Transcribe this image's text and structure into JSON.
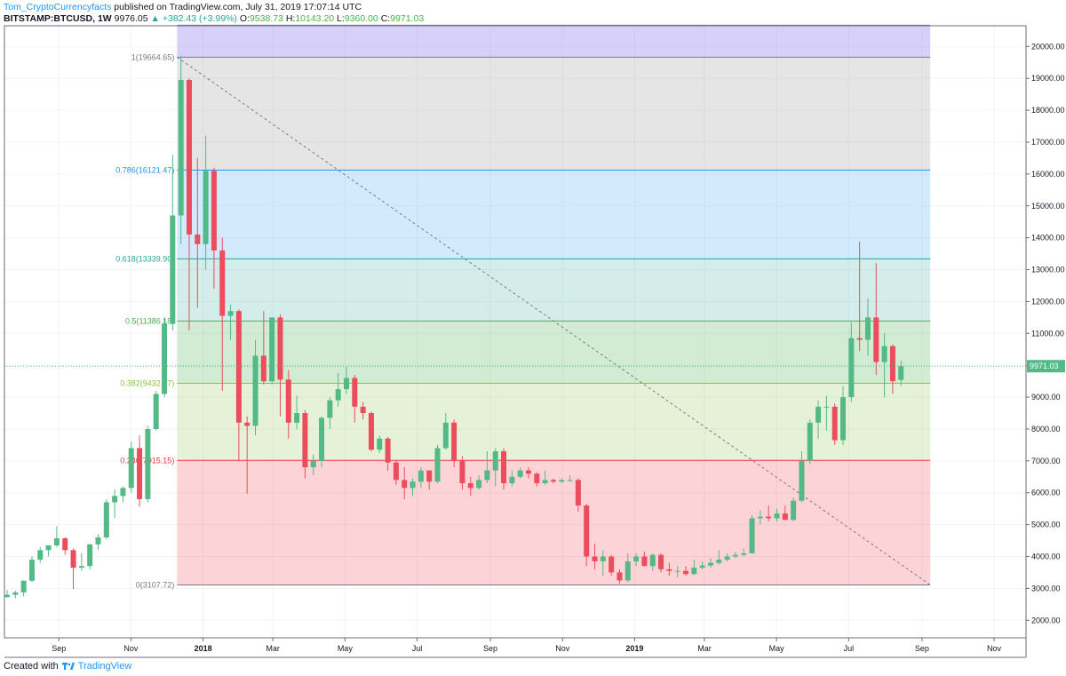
{
  "header": {
    "author": "Tom_CryptoCurrencyfacts",
    "published_text": "published on TradingView.com, July 31, 2019 17:07:14 UTC",
    "symbol": "BITSTAMP:BTCUSD, 1W",
    "last": "9976.05",
    "change": "+382.43 (+3.99%)",
    "o_label": "O:",
    "o_value": "9538.73",
    "h_label": "H:",
    "h_value": "10143.20",
    "l_label": "L:",
    "l_value": "9360.00",
    "c_label": "C:",
    "c_value": "9971.03"
  },
  "footer": {
    "created_with": "Created with",
    "brand": "TradingView"
  },
  "colors": {
    "up": "#53b987",
    "down": "#eb4d5c",
    "accent": "#2196f3"
  },
  "chart_data": {
    "type": "candlestick",
    "price_label": "9971.03",
    "price_line": 9971.03,
    "ylim": [
      1450,
      20650
    ],
    "y_ticks": [
      2000,
      3000,
      4000,
      5000,
      6000,
      7000,
      8000,
      9000,
      10000,
      11000,
      12000,
      13000,
      14000,
      15000,
      16000,
      17000,
      18000,
      19000,
      20000
    ],
    "y_tick_labels": [
      "2000.00",
      "3000.00",
      "4000.00",
      "5000.00",
      "6000.00",
      "7000.00",
      "8000.00",
      "9000.00",
      "10000.00",
      "11000.00",
      "12000.00",
      "13000.00",
      "14000.00",
      "15000.00",
      "16000.00",
      "17000.00",
      "18000.00",
      "19000.00",
      "20000.00"
    ],
    "x_start": "2017-07-17",
    "x_end": "2019-11-28",
    "x_ticks": [
      {
        "date": "2017-09-01",
        "label": "Sep"
      },
      {
        "date": "2017-11-01",
        "label": "Nov"
      },
      {
        "date": "2018-01-01",
        "label": "2018"
      },
      {
        "date": "2018-03-01",
        "label": "Mar"
      },
      {
        "date": "2018-05-01",
        "label": "May"
      },
      {
        "date": "2018-07-01",
        "label": "Jul"
      },
      {
        "date": "2018-09-01",
        "label": "Sep"
      },
      {
        "date": "2018-11-01",
        "label": "Nov"
      },
      {
        "date": "2019-01-01",
        "label": "2019"
      },
      {
        "date": "2019-03-01",
        "label": "Mar"
      },
      {
        "date": "2019-05-01",
        "label": "May"
      },
      {
        "date": "2019-07-01",
        "label": "Jul"
      },
      {
        "date": "2019-09-01",
        "label": "Sep"
      },
      {
        "date": "2019-11-01",
        "label": "Nov"
      }
    ],
    "fib": {
      "start_date": "2017-12-10",
      "end_date": "2019-09-08",
      "trend_from": {
        "date": "2017-12-10",
        "value": 19664.65
      },
      "trend_to": {
        "date": "2019-09-08",
        "value": 3107.72
      },
      "levels": [
        {
          "ratio": 1.272,
          "value": 20666,
          "label": "",
          "color": "#7b68ee"
        },
        {
          "ratio": 1,
          "value": 19664.65,
          "label": "1(19664.65)",
          "color": "#787b86"
        },
        {
          "ratio": 0.786,
          "value": 16121.47,
          "label": "0.786(16121.47)",
          "color": "#2196f3"
        },
        {
          "ratio": 0.618,
          "value": 13339.9,
          "label": "0.618(13339.90)",
          "color": "#26a69a"
        },
        {
          "ratio": 0.5,
          "value": 11386.18,
          "label": "0.5(11386.18)",
          "color": "#4caf50"
        },
        {
          "ratio": 0.382,
          "value": 9432.47,
          "label": "0.382(9432.47)",
          "color": "#8bc34a"
        },
        {
          "ratio": 0.236,
          "value": 7015.15,
          "label": "0.236(7015.15)",
          "color": "#f23645"
        },
        {
          "ratio": 0,
          "value": 3107.72,
          "label": "0(3107.72)",
          "color": "#787b86"
        }
      ],
      "zone_fills": [
        "rgba(123,104,238,0.30)",
        "rgba(150,150,150,0.25)",
        "rgba(33,150,243,0.20)",
        "rgba(38,166,154,0.20)",
        "rgba(76,175,80,0.25)",
        "rgba(139,195,74,0.22)",
        "rgba(242,54,69,0.22)"
      ]
    },
    "candles": [
      {
        "d": "2017-07-17",
        "o": 2730,
        "h": 2950,
        "l": 2700,
        "c": 2800
      },
      {
        "d": "2017-07-24",
        "o": 2800,
        "h": 2930,
        "l": 2700,
        "c": 2875
      },
      {
        "d": "2017-07-31",
        "o": 2875,
        "h": 3250,
        "l": 2750,
        "c": 3240
      },
      {
        "d": "2017-08-07",
        "o": 3240,
        "h": 4000,
        "l": 3200,
        "c": 3900
      },
      {
        "d": "2017-08-14",
        "o": 3900,
        "h": 4300,
        "l": 3800,
        "c": 4200
      },
      {
        "d": "2017-08-21",
        "o": 4200,
        "h": 4350,
        "l": 4000,
        "c": 4350
      },
      {
        "d": "2017-08-28",
        "o": 4350,
        "h": 4950,
        "l": 4300,
        "c": 4570
      },
      {
        "d": "2017-09-04",
        "o": 4570,
        "h": 4600,
        "l": 4050,
        "c": 4200
      },
      {
        "d": "2017-09-11",
        "o": 4200,
        "h": 4250,
        "l": 2980,
        "c": 3650
      },
      {
        "d": "2017-09-18",
        "o": 3650,
        "h": 4100,
        "l": 3550,
        "c": 3700
      },
      {
        "d": "2017-09-25",
        "o": 3700,
        "h": 4400,
        "l": 3600,
        "c": 4380
      },
      {
        "d": "2017-10-02",
        "o": 4380,
        "h": 4700,
        "l": 4200,
        "c": 4600
      },
      {
        "d": "2017-10-09",
        "o": 4600,
        "h": 5800,
        "l": 4550,
        "c": 5700
      },
      {
        "d": "2017-10-16",
        "o": 5700,
        "h": 6100,
        "l": 5200,
        "c": 5900
      },
      {
        "d": "2017-10-23",
        "o": 5900,
        "h": 6200,
        "l": 5700,
        "c": 6150
      },
      {
        "d": "2017-10-30",
        "o": 6150,
        "h": 7600,
        "l": 6000,
        "c": 7400
      },
      {
        "d": "2017-11-06",
        "o": 7400,
        "h": 7800,
        "l": 5560,
        "c": 5800
      },
      {
        "d": "2017-11-13",
        "o": 5800,
        "h": 8100,
        "l": 5700,
        "c": 8000
      },
      {
        "d": "2017-11-20",
        "o": 8000,
        "h": 9200,
        "l": 7950,
        "c": 9100
      },
      {
        "d": "2017-11-27",
        "o": 9100,
        "h": 11500,
        "l": 9000,
        "c": 11300
      },
      {
        "d": "2017-12-04",
        "o": 11300,
        "h": 16600,
        "l": 11100,
        "c": 14700
      },
      {
        "d": "2017-12-11",
        "o": 14700,
        "h": 19700,
        "l": 13800,
        "c": 18950
      },
      {
        "d": "2017-12-18",
        "o": 18950,
        "h": 19000,
        "l": 11100,
        "c": 14100
      },
      {
        "d": "2017-12-25",
        "o": 14100,
        "h": 16500,
        "l": 11800,
        "c": 13800
      },
      {
        "d": "2018-01-01",
        "o": 13800,
        "h": 17200,
        "l": 13000,
        "c": 16100
      },
      {
        "d": "2018-01-08",
        "o": 16100,
        "h": 16200,
        "l": 12400,
        "c": 13600
      },
      {
        "d": "2018-01-15",
        "o": 13600,
        "h": 14000,
        "l": 9200,
        "c": 11550
      },
      {
        "d": "2018-01-22",
        "o": 11550,
        "h": 11900,
        "l": 10800,
        "c": 11700
      },
      {
        "d": "2018-01-29",
        "o": 11700,
        "h": 11750,
        "l": 7000,
        "c": 8200
      },
      {
        "d": "2018-02-05",
        "o": 8200,
        "h": 8400,
        "l": 5970,
        "c": 8100
      },
      {
        "d": "2018-02-12",
        "o": 8100,
        "h": 10800,
        "l": 7800,
        "c": 10300
      },
      {
        "d": "2018-02-19",
        "o": 10300,
        "h": 11700,
        "l": 9400,
        "c": 9500
      },
      {
        "d": "2018-02-26",
        "o": 9500,
        "h": 11500,
        "l": 9400,
        "c": 11500
      },
      {
        "d": "2018-03-05",
        "o": 11500,
        "h": 11600,
        "l": 8400,
        "c": 9550
      },
      {
        "d": "2018-03-12",
        "o": 9550,
        "h": 9850,
        "l": 7700,
        "c": 8200
      },
      {
        "d": "2018-03-19",
        "o": 8200,
        "h": 9050,
        "l": 8000,
        "c": 8500
      },
      {
        "d": "2018-03-26",
        "o": 8500,
        "h": 8600,
        "l": 6450,
        "c": 6800
      },
      {
        "d": "2018-04-02",
        "o": 6800,
        "h": 7200,
        "l": 6550,
        "c": 7000
      },
      {
        "d": "2018-04-09",
        "o": 7000,
        "h": 8400,
        "l": 6800,
        "c": 8350
      },
      {
        "d": "2018-04-16",
        "o": 8350,
        "h": 9000,
        "l": 8000,
        "c": 8900
      },
      {
        "d": "2018-04-23",
        "o": 8900,
        "h": 9750,
        "l": 8700,
        "c": 9250
      },
      {
        "d": "2018-04-30",
        "o": 9250,
        "h": 9950,
        "l": 9100,
        "c": 9600
      },
      {
        "d": "2018-05-07",
        "o": 9600,
        "h": 9700,
        "l": 8200,
        "c": 8700
      },
      {
        "d": "2018-05-14",
        "o": 8700,
        "h": 8850,
        "l": 8300,
        "c": 8500
      },
      {
        "d": "2018-05-21",
        "o": 8500,
        "h": 8550,
        "l": 7300,
        "c": 7350
      },
      {
        "d": "2018-05-28",
        "o": 7350,
        "h": 7800,
        "l": 7250,
        "c": 7700
      },
      {
        "d": "2018-06-04",
        "o": 7700,
        "h": 7750,
        "l": 6700,
        "c": 6950
      },
      {
        "d": "2018-06-11",
        "o": 6950,
        "h": 7000,
        "l": 6250,
        "c": 6400
      },
      {
        "d": "2018-06-18",
        "o": 6400,
        "h": 6800,
        "l": 5800,
        "c": 6150
      },
      {
        "d": "2018-06-25",
        "o": 6150,
        "h": 6450,
        "l": 5900,
        "c": 6350
      },
      {
        "d": "2018-07-02",
        "o": 6350,
        "h": 6800,
        "l": 6150,
        "c": 6700
      },
      {
        "d": "2018-07-09",
        "o": 6700,
        "h": 6700,
        "l": 6100,
        "c": 6350
      },
      {
        "d": "2018-07-16",
        "o": 6350,
        "h": 7500,
        "l": 6300,
        "c": 7400
      },
      {
        "d": "2018-07-23",
        "o": 7400,
        "h": 8500,
        "l": 7350,
        "c": 8200
      },
      {
        "d": "2018-07-30",
        "o": 8200,
        "h": 8300,
        "l": 6800,
        "c": 7000
      },
      {
        "d": "2018-08-06",
        "o": 7000,
        "h": 7150,
        "l": 6100,
        "c": 6300
      },
      {
        "d": "2018-08-13",
        "o": 6300,
        "h": 6500,
        "l": 5900,
        "c": 6150
      },
      {
        "d": "2018-08-20",
        "o": 6150,
        "h": 6550,
        "l": 6100,
        "c": 6400
      },
      {
        "d": "2018-08-27",
        "o": 6400,
        "h": 7300,
        "l": 6300,
        "c": 6700
      },
      {
        "d": "2018-09-03",
        "o": 6700,
        "h": 7400,
        "l": 6200,
        "c": 7300
      },
      {
        "d": "2018-09-10",
        "o": 7300,
        "h": 7400,
        "l": 6100,
        "c": 6300
      },
      {
        "d": "2018-09-17",
        "o": 6300,
        "h": 6700,
        "l": 6200,
        "c": 6500
      },
      {
        "d": "2018-09-24",
        "o": 6500,
        "h": 6800,
        "l": 6450,
        "c": 6700
      },
      {
        "d": "2018-10-01",
        "o": 6700,
        "h": 6800,
        "l": 6450,
        "c": 6600
      },
      {
        "d": "2018-10-08",
        "o": 6600,
        "h": 6650,
        "l": 6200,
        "c": 6300
      },
      {
        "d": "2018-10-15",
        "o": 6300,
        "h": 6700,
        "l": 6250,
        "c": 6400
      },
      {
        "d": "2018-10-22",
        "o": 6400,
        "h": 6450,
        "l": 6300,
        "c": 6350
      },
      {
        "d": "2018-10-29",
        "o": 6350,
        "h": 6450,
        "l": 6300,
        "c": 6400
      },
      {
        "d": "2018-11-05",
        "o": 6400,
        "h": 6550,
        "l": 6350,
        "c": 6400
      },
      {
        "d": "2018-11-12",
        "o": 6400,
        "h": 6450,
        "l": 5400,
        "c": 5600
      },
      {
        "d": "2018-11-19",
        "o": 5600,
        "h": 5650,
        "l": 3700,
        "c": 4000
      },
      {
        "d": "2018-11-26",
        "o": 4000,
        "h": 4400,
        "l": 3600,
        "c": 3850
      },
      {
        "d": "2018-12-03",
        "o": 3850,
        "h": 4200,
        "l": 3400,
        "c": 4000
      },
      {
        "d": "2018-12-10",
        "o": 4000,
        "h": 4050,
        "l": 3400,
        "c": 3500
      },
      {
        "d": "2018-12-17",
        "o": 3500,
        "h": 3600,
        "l": 3150,
        "c": 3250
      },
      {
        "d": "2018-12-24",
        "o": 3250,
        "h": 4100,
        "l": 3200,
        "c": 3850
      },
      {
        "d": "2018-12-31",
        "o": 3850,
        "h": 4100,
        "l": 3700,
        "c": 4000
      },
      {
        "d": "2019-01-07",
        "o": 4000,
        "h": 4150,
        "l": 3700,
        "c": 3700
      },
      {
        "d": "2019-01-14",
        "o": 3700,
        "h": 4100,
        "l": 3550,
        "c": 4050
      },
      {
        "d": "2019-01-21",
        "o": 4050,
        "h": 4100,
        "l": 3500,
        "c": 3600
      },
      {
        "d": "2019-01-28",
        "o": 3600,
        "h": 3800,
        "l": 3400,
        "c": 3550
      },
      {
        "d": "2019-02-04",
        "o": 3550,
        "h": 3700,
        "l": 3350,
        "c": 3550
      },
      {
        "d": "2019-02-11",
        "o": 3550,
        "h": 3700,
        "l": 3400,
        "c": 3450
      },
      {
        "d": "2019-02-18",
        "o": 3450,
        "h": 3900,
        "l": 3420,
        "c": 3650
      },
      {
        "d": "2019-02-25",
        "o": 3650,
        "h": 3850,
        "l": 3600,
        "c": 3720
      },
      {
        "d": "2019-03-04",
        "o": 3720,
        "h": 3950,
        "l": 3650,
        "c": 3800
      },
      {
        "d": "2019-03-11",
        "o": 3800,
        "h": 4200,
        "l": 3750,
        "c": 3900
      },
      {
        "d": "2019-03-18",
        "o": 3900,
        "h": 4100,
        "l": 3850,
        "c": 4000
      },
      {
        "d": "2019-03-25",
        "o": 4000,
        "h": 4150,
        "l": 3950,
        "c": 4050
      },
      {
        "d": "2019-04-01",
        "o": 4050,
        "h": 4250,
        "l": 4000,
        "c": 4100
      },
      {
        "d": "2019-04-08",
        "o": 4100,
        "h": 5300,
        "l": 4100,
        "c": 5200
      },
      {
        "d": "2019-04-15",
        "o": 5200,
        "h": 5450,
        "l": 5000,
        "c": 5250
      },
      {
        "d": "2019-04-22",
        "o": 5250,
        "h": 5600,
        "l": 5100,
        "c": 5200
      },
      {
        "d": "2019-04-29",
        "o": 5200,
        "h": 5500,
        "l": 5100,
        "c": 5350
      },
      {
        "d": "2019-05-06",
        "o": 5350,
        "h": 5600,
        "l": 5150,
        "c": 5150
      },
      {
        "d": "2019-05-13",
        "o": 5150,
        "h": 5850,
        "l": 5100,
        "c": 5750
      },
      {
        "d": "2019-05-20",
        "o": 5750,
        "h": 7300,
        "l": 5700,
        "c": 7000
      },
      {
        "d": "2019-05-27",
        "o": 7000,
        "h": 8300,
        "l": 6900,
        "c": 8200
      },
      {
        "d": "2019-06-03",
        "o": 8200,
        "h": 8900,
        "l": 7700,
        "c": 8700
      },
      {
        "d": "2019-06-10",
        "o": 8700,
        "h": 9050,
        "l": 7950,
        "c": 8700
      },
      {
        "d": "2019-06-17",
        "o": 8700,
        "h": 8800,
        "l": 7500,
        "c": 7650
      },
      {
        "d": "2019-06-24",
        "o": 7650,
        "h": 9350,
        "l": 7500,
        "c": 9000
      },
      {
        "d": "2019-07-01",
        "o": 9000,
        "h": 11350,
        "l": 8850,
        "c": 10850
      },
      {
        "d": "2019-07-08",
        "o": 10850,
        "h": 13880,
        "l": 10450,
        "c": 10800
      },
      {
        "d": "2019-07-15",
        "o": 10800,
        "h": 12100,
        "l": 10300,
        "c": 11500
      },
      {
        "d": "2019-07-22",
        "o": 11500,
        "h": 13200,
        "l": 9700,
        "c": 10100
      },
      {
        "d": "2019-07-29",
        "o": 10100,
        "h": 11000,
        "l": 9000,
        "c": 10600
      },
      {
        "d": "2019-08-05",
        "o": 10600,
        "h": 10650,
        "l": 9100,
        "c": 9500
      },
      {
        "d": "2019-08-12",
        "o": 9538.73,
        "h": 10143.2,
        "l": 9360,
        "c": 9971.03
      }
    ]
  }
}
